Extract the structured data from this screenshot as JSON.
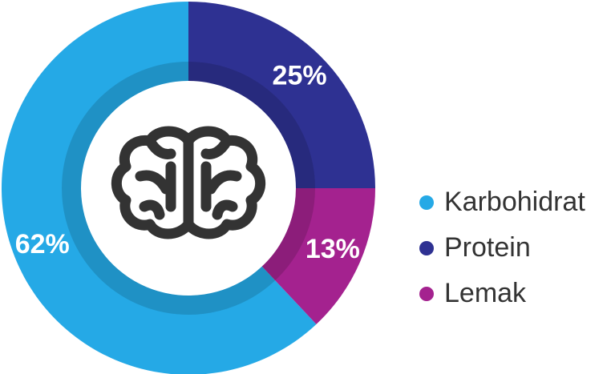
{
  "chart_data": {
    "type": "donut",
    "categories": [
      "Karbohidrat",
      "Protein",
      "Lemak"
    ],
    "values": [
      62,
      25,
      13
    ],
    "value_labels": [
      "62%",
      "25%",
      "13%"
    ],
    "colors": [
      "#25a9e6",
      "#2e3192",
      "#a4228f"
    ],
    "legend": "right"
  }
}
